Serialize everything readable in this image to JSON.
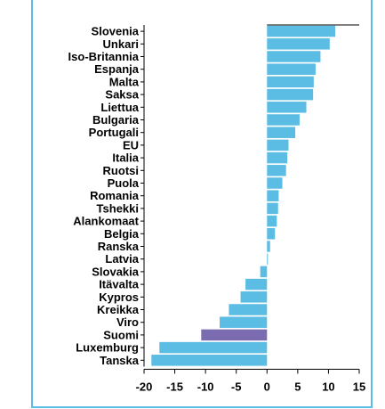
{
  "header": {
    "caption": ""
  },
  "chart_data": {
    "type": "bar",
    "orientation": "horizontal",
    "categories": [
      "Slovenia",
      "Unkari",
      "Iso-Britannia",
      "Espanja",
      "Malta",
      "Saksa",
      "Liettua",
      "Bulgaria",
      "Portugali",
      "EU",
      "Italia",
      "Ruotsi",
      "Puola",
      "Romania",
      "Tshekki",
      "Alankomaat",
      "Belgia",
      "Ranska",
      "Latvia",
      "Slovakia",
      "Itävalta",
      "Kypros",
      "Kreikka",
      "Viro",
      "Suomi",
      "Luxemburg",
      "Tanska"
    ],
    "values": [
      11.1,
      10.2,
      8.7,
      7.9,
      7.6,
      7.5,
      6.4,
      5.3,
      4.6,
      3.5,
      3.3,
      3.1,
      2.5,
      1.9,
      1.8,
      1.6,
      1.3,
      0.5,
      0.1,
      -1.1,
      -3.5,
      -4.3,
      -6.2,
      -7.7,
      -10.7,
      -17.5,
      -18.8
    ],
    "highlight": "Suomi",
    "colors": {
      "bar": "#5bbde3",
      "highlight": "#7b6bb0",
      "frame": "#5bbde3",
      "axis": "#000000"
    },
    "xlim": [
      -20,
      15
    ],
    "xticks": [
      "-20",
      "-15",
      "-10",
      "-5",
      "0",
      "5",
      "10",
      "15"
    ],
    "xtick_values": [
      -20,
      -15,
      -10,
      -5,
      0,
      5,
      10,
      15
    ],
    "grid": false,
    "legend": "none",
    "title": "",
    "xlabel": "",
    "ylabel": ""
  }
}
